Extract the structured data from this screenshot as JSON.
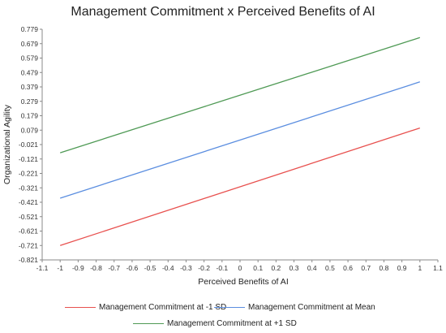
{
  "chart_data": {
    "type": "line",
    "title": "Management Commitment x Perceived Benefits of AI",
    "xlabel": "Perceived Benefits of AI",
    "ylabel": "Organizational Agility",
    "xlim": [
      -1.1,
      1.1
    ],
    "ylim": [
      -0.821,
      0.779
    ],
    "x_ticks": [
      "-1.1",
      "-1",
      "-0.9",
      "-0.8",
      "-0.7",
      "-0.6",
      "-0.5",
      "-0.4",
      "-0.3",
      "-0.2",
      "-0.1",
      "0",
      "0.1",
      "0.2",
      "0.3",
      "0.4",
      "0.5",
      "0.6",
      "0.7",
      "0.8",
      "0.9",
      "1",
      "1.1"
    ],
    "y_ticks": [
      "0.779",
      "0.679",
      "0.579",
      "0.479",
      "0.379",
      "0.279",
      "0.179",
      "0.079",
      "-0.021",
      "-0.121",
      "-0.221",
      "-0.321",
      "-0.421",
      "-0.521",
      "-0.621",
      "-0.721",
      "-0.821"
    ],
    "grid": false,
    "legend_position": "bottom",
    "series": [
      {
        "name": "Management Commitment at -1 SD",
        "color": "#e8514f",
        "x": [
          -1,
          1
        ],
        "y": [
          -0.721,
          0.094
        ]
      },
      {
        "name": "Management Commitment at Mean",
        "color": "#5b8ee0",
        "x": [
          -1,
          1
        ],
        "y": [
          -0.393,
          0.414
        ]
      },
      {
        "name": "Management Commitment at +1 SD",
        "color": "#4f9a55",
        "x": [
          -1,
          1
        ],
        "y": [
          -0.078,
          0.721
        ]
      }
    ]
  }
}
